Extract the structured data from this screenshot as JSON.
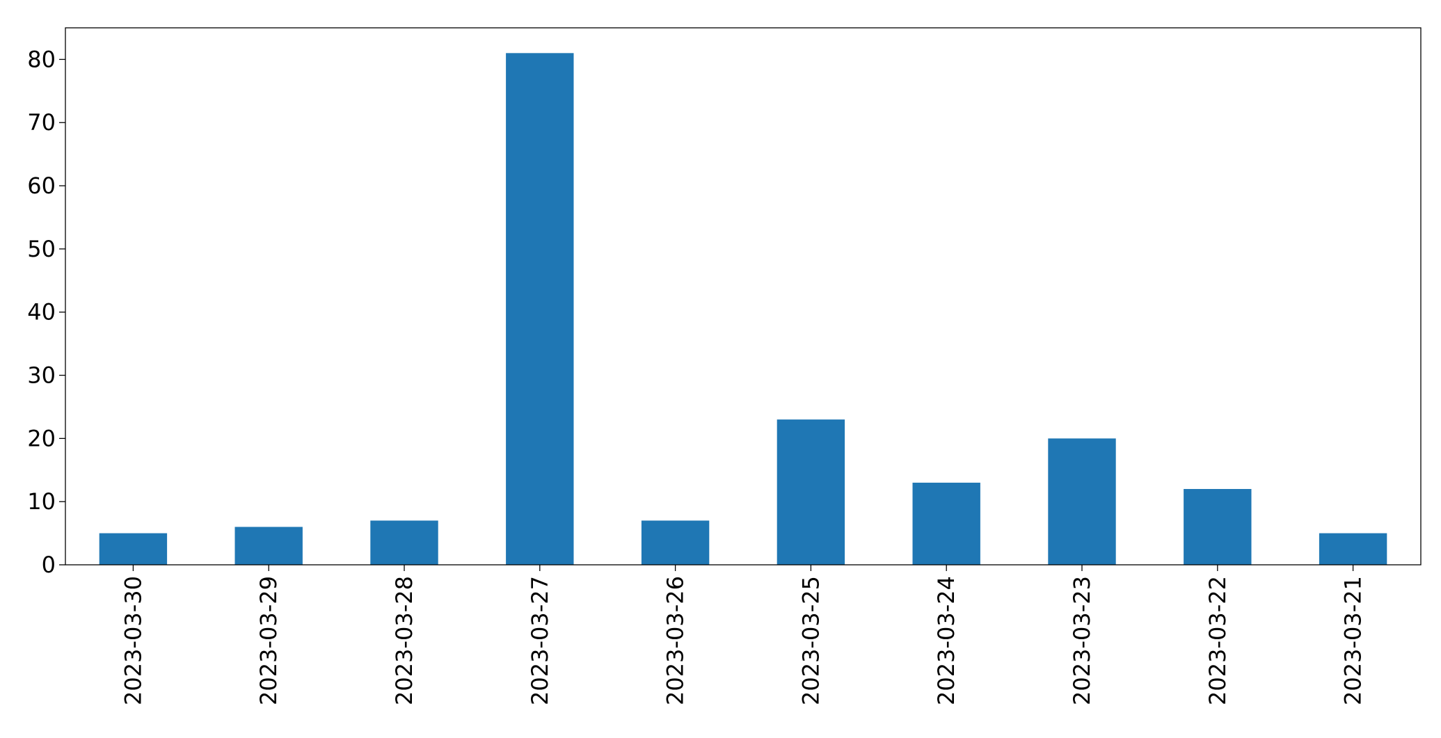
{
  "chart_data": {
    "type": "bar",
    "categories": [
      "2023-03-30",
      "2023-03-29",
      "2023-03-28",
      "2023-03-27",
      "2023-03-26",
      "2023-03-25",
      "2023-03-24",
      "2023-03-23",
      "2023-03-22",
      "2023-03-21"
    ],
    "values": [
      5,
      6,
      7,
      81,
      7,
      23,
      13,
      20,
      12,
      5
    ],
    "color": "#1f77b4",
    "ylim": [
      0,
      85
    ],
    "yticks": [
      0,
      10,
      20,
      30,
      40,
      50,
      60,
      70,
      80
    ],
    "grid": false
  }
}
